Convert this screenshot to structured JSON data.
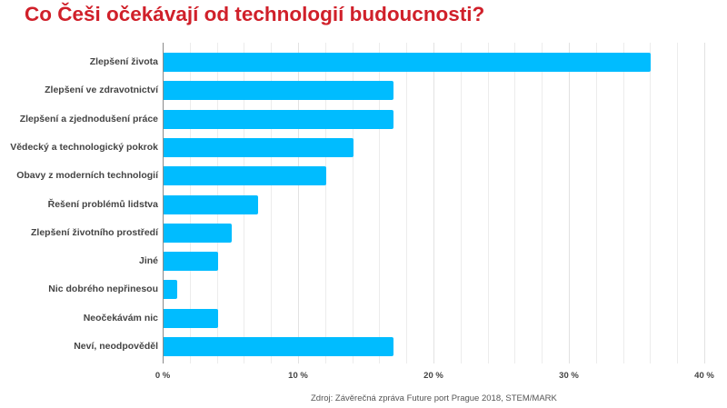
{
  "title": "Co Češi očekávají od technologií budoucnosti?",
  "source": "Zdroj: Závěrečná zpráva Future port Prague 2018, STEM/MARK",
  "colors": {
    "title": "#d0202a",
    "bar": "#00bcff",
    "label": "#444444",
    "grid": "#e2e2e2"
  },
  "axis": {
    "ticks": [
      "0 %",
      "10 %",
      "20 %",
      "30 %",
      "40 %"
    ]
  },
  "chart_data": {
    "type": "bar",
    "orientation": "horizontal",
    "title": "Co Češi očekávají od technologií budoucnosti?",
    "categories": [
      "Zlepšení života",
      "Zlepšení ve zdravotnictví",
      "Zlepšení a zjednodušení práce",
      "Vědecký a technologický pokrok",
      "Obavy z moderních technologií",
      "Řešení problémů lidstva",
      "Zlepšení životního prostředí",
      "Jiné",
      "Nic dobrého nepřinesou",
      "Neočekávám nic",
      "Neví, neodpověděl"
    ],
    "values": [
      36,
      17,
      17,
      14,
      12,
      7,
      5,
      4,
      1,
      4,
      17
    ],
    "unit": "%",
    "xlabel": "",
    "ylabel": "",
    "xlim": [
      0,
      40
    ],
    "xticks": [
      "0 %",
      "10 %",
      "20 %",
      "30 %",
      "40 %"
    ],
    "grid": true,
    "legend": null,
    "annotations": [
      "Zdroj: Závěrečná zpráva Future port Prague 2018, STEM/MARK"
    ]
  }
}
